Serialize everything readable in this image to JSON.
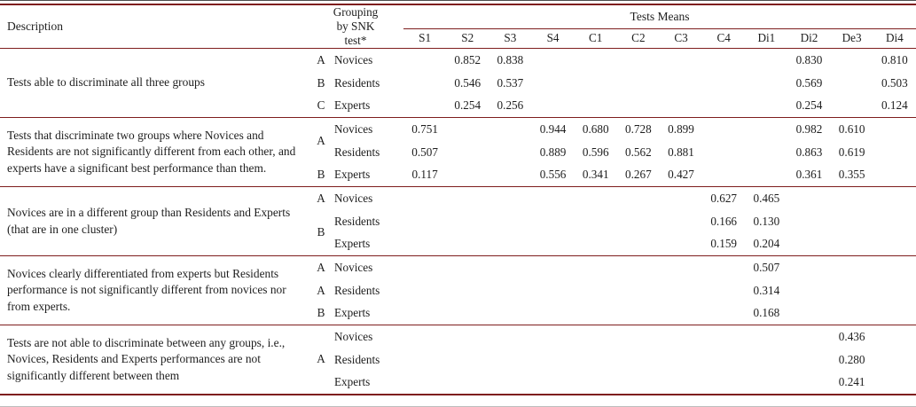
{
  "colors": {
    "rule": "#7e1e1e",
    "text": "#1e1e1e"
  },
  "header": {
    "description": "Description",
    "grouping": "Grouping\nby SNK\ntest*",
    "tests_means": "Tests Means",
    "columns": [
      "S1",
      "S2",
      "S3",
      "S4",
      "C1",
      "C2",
      "C3",
      "C4",
      "Di1",
      "Di2",
      "De3",
      "Di4"
    ]
  },
  "sections": [
    {
      "description": "Tests able to discriminate all three groups",
      "rows": [
        {
          "letter": "A",
          "group": "Novices",
          "values": {
            "S2": "0.852",
            "S3": "0.838",
            "Di2": "0.830",
            "Di4": "0.810"
          }
        },
        {
          "letter": "B",
          "group": "Residents",
          "values": {
            "S2": "0.546",
            "S3": "0.537",
            "Di2": "0.569",
            "Di4": "0.503"
          }
        },
        {
          "letter": "C",
          "group": "Experts",
          "values": {
            "S2": "0.254",
            "S3": "0.256",
            "Di2": "0.254",
            "Di4": "0.124"
          }
        }
      ]
    },
    {
      "description": "Tests that discriminate two groups where Novices and Residents are not significantly different from each other, and experts have a significant best performance than them.",
      "rows": [
        {
          "letter": "A",
          "group": "Novices",
          "values": {
            "S1": "0.751",
            "S4": "0.944",
            "C1": "0.680",
            "C2": "0.728",
            "C3": "0.899",
            "Di2": "0.982",
            "De3": "0.610"
          }
        },
        {
          "group": "Residents",
          "values": {
            "S1": "0.507",
            "S4": "0.889",
            "C1": "0.596",
            "C2": "0.562",
            "C3": "0.881",
            "Di2": "0.863",
            "De3": "0.619"
          }
        },
        {
          "letter": "B",
          "group": "Experts",
          "values": {
            "S1": "0.117",
            "S4": "0.556",
            "C1": "0.341",
            "C2": "0.267",
            "C3": "0.427",
            "Di2": "0.361",
            "De3": "0.355"
          }
        }
      ]
    },
    {
      "description": "Novices are in a different group than Residents and Experts (that are in one cluster)",
      "rows": [
        {
          "letter": "A",
          "group": "Novices",
          "values": {
            "C4": "0.627",
            "Di1": "0.465"
          }
        },
        {
          "letter": "B",
          "group": "Residents",
          "values": {
            "C4": "0.166",
            "Di1": "0.130"
          }
        },
        {
          "group": "Experts",
          "values": {
            "C4": "0.159",
            "Di1": "0.204"
          }
        }
      ]
    },
    {
      "description": "Novices clearly differentiated from experts but Residents performance is not significantly different from novices nor from experts.",
      "rows": [
        {
          "letter": "A",
          "group": "Novices",
          "values": {
            "Di1": "0.507"
          }
        },
        {
          "letter": "A",
          "group": "Residents",
          "values": {
            "Di1": "0.314"
          }
        },
        {
          "letter": "B",
          "group": "Experts",
          "values": {
            "Di1": "0.168"
          }
        }
      ]
    },
    {
      "description": "Tests are not able to discriminate between any groups, i.e., Novices, Residents and Experts per­formances are not significantly different between them",
      "rows": [
        {
          "letter": "A",
          "group": "Novices",
          "values": {
            "De3": "0.436"
          }
        },
        {
          "group": "Residents",
          "values": {
            "De3": "0.280"
          }
        },
        {
          "group": "Experts",
          "values": {
            "De3": "0.241"
          }
        }
      ]
    }
  ]
}
